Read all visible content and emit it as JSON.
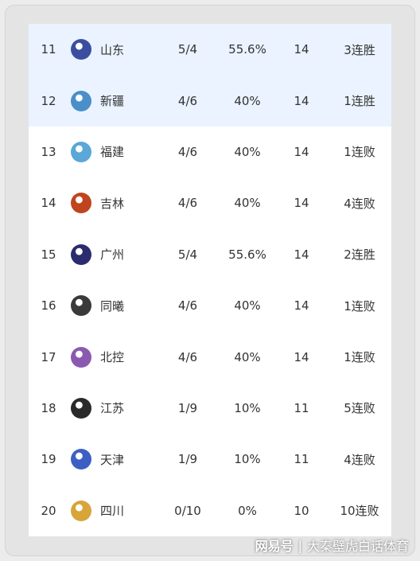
{
  "standings": [
    {
      "rank": "11",
      "team": "山东",
      "record": "5/4",
      "pct": "55.6%",
      "remaining": "14",
      "streak": "3连胜",
      "logo_icon": "shandong-logo-icon",
      "logo_color": "#3a4ea0",
      "highlight": true
    },
    {
      "rank": "12",
      "team": "新疆",
      "record": "4/6",
      "pct": "40%",
      "remaining": "14",
      "streak": "1连胜",
      "logo_icon": "xinjiang-logo-icon",
      "logo_color": "#4a8fc9",
      "highlight": true
    },
    {
      "rank": "13",
      "team": "福建",
      "record": "4/6",
      "pct": "40%",
      "remaining": "14",
      "streak": "1连败",
      "logo_icon": "fujian-logo-icon",
      "logo_color": "#5aa7d8",
      "highlight": false
    },
    {
      "rank": "14",
      "team": "吉林",
      "record": "4/6",
      "pct": "40%",
      "remaining": "14",
      "streak": "4连败",
      "logo_icon": "jilin-logo-icon",
      "logo_color": "#c0441d",
      "highlight": false
    },
    {
      "rank": "15",
      "team": "广州",
      "record": "5/4",
      "pct": "55.6%",
      "remaining": "14",
      "streak": "2连胜",
      "logo_icon": "guangzhou-logo-icon",
      "logo_color": "#2b2b6e",
      "highlight": false
    },
    {
      "rank": "16",
      "team": "同曦",
      "record": "4/6",
      "pct": "40%",
      "remaining": "14",
      "streak": "1连败",
      "logo_icon": "tongxi-logo-icon",
      "logo_color": "#3a3a3a",
      "highlight": false
    },
    {
      "rank": "17",
      "team": "北控",
      "record": "4/6",
      "pct": "40%",
      "remaining": "14",
      "streak": "1连败",
      "logo_icon": "beikong-logo-icon",
      "logo_color": "#8a5ab0",
      "highlight": false
    },
    {
      "rank": "18",
      "team": "江苏",
      "record": "1/9",
      "pct": "10%",
      "remaining": "11",
      "streak": "5连败",
      "logo_icon": "jiangsu-logo-icon",
      "logo_color": "#2a2a2a",
      "highlight": false
    },
    {
      "rank": "19",
      "team": "天津",
      "record": "1/9",
      "pct": "10%",
      "remaining": "11",
      "streak": "4连败",
      "logo_icon": "tianjin-logo-icon",
      "logo_color": "#3c5fc4",
      "highlight": false
    },
    {
      "rank": "20",
      "team": "四川",
      "record": "0/10",
      "pct": "0%",
      "remaining": "10",
      "streak": "10连败",
      "logo_icon": "sichuan-logo-icon",
      "logo_color": "#d8a53a",
      "highlight": false
    }
  ],
  "watermark": {
    "brand": "网易号",
    "author": "大秦壁虎白话体育"
  }
}
